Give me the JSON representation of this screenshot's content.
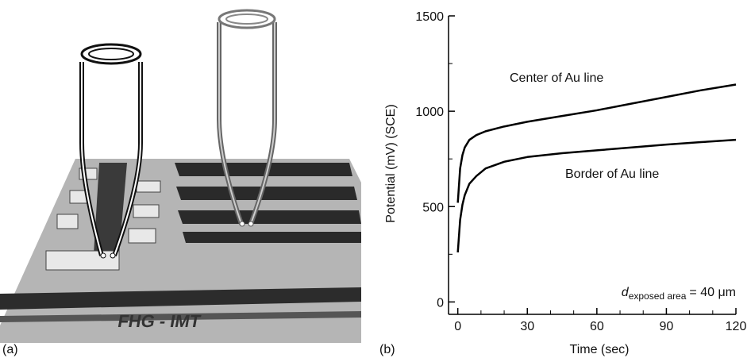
{
  "panel_labels": [
    "(a)",
    "(b)"
  ],
  "chart_data": {
    "type": "line",
    "xlabel": "Time (sec)",
    "ylabel": "Potential (mV) (SCE)",
    "x": [
      0,
      1,
      2,
      3,
      5,
      8,
      12,
      20,
      30,
      45,
      60,
      75,
      90,
      105,
      120
    ],
    "series": [
      {
        "name": "Center of Au line",
        "color": "#000000",
        "values": [
          520,
          700,
          770,
          810,
          850,
          875,
          895,
          920,
          945,
          975,
          1005,
          1040,
          1075,
          1110,
          1140
        ]
      },
      {
        "name": "Border of Au line",
        "color": "#000000",
        "values": [
          260,
          430,
          510,
          560,
          620,
          660,
          700,
          735,
          760,
          780,
          795,
          810,
          825,
          838,
          850
        ]
      }
    ],
    "annotation": {
      "symbol": "d",
      "subscript": "exposed area",
      "text": "= 40 μm"
    },
    "xlim": [
      -4,
      120
    ],
    "ylim": [
      -65,
      1500
    ],
    "xticks": [
      0,
      30,
      60,
      90,
      120
    ],
    "yticks": [
      0,
      500,
      1000,
      1500
    ],
    "xminor_ticks": [
      10,
      20,
      40,
      50,
      70,
      80,
      100,
      110
    ],
    "yminor_ticks": [
      250,
      750,
      1250
    ],
    "grid": false
  }
}
